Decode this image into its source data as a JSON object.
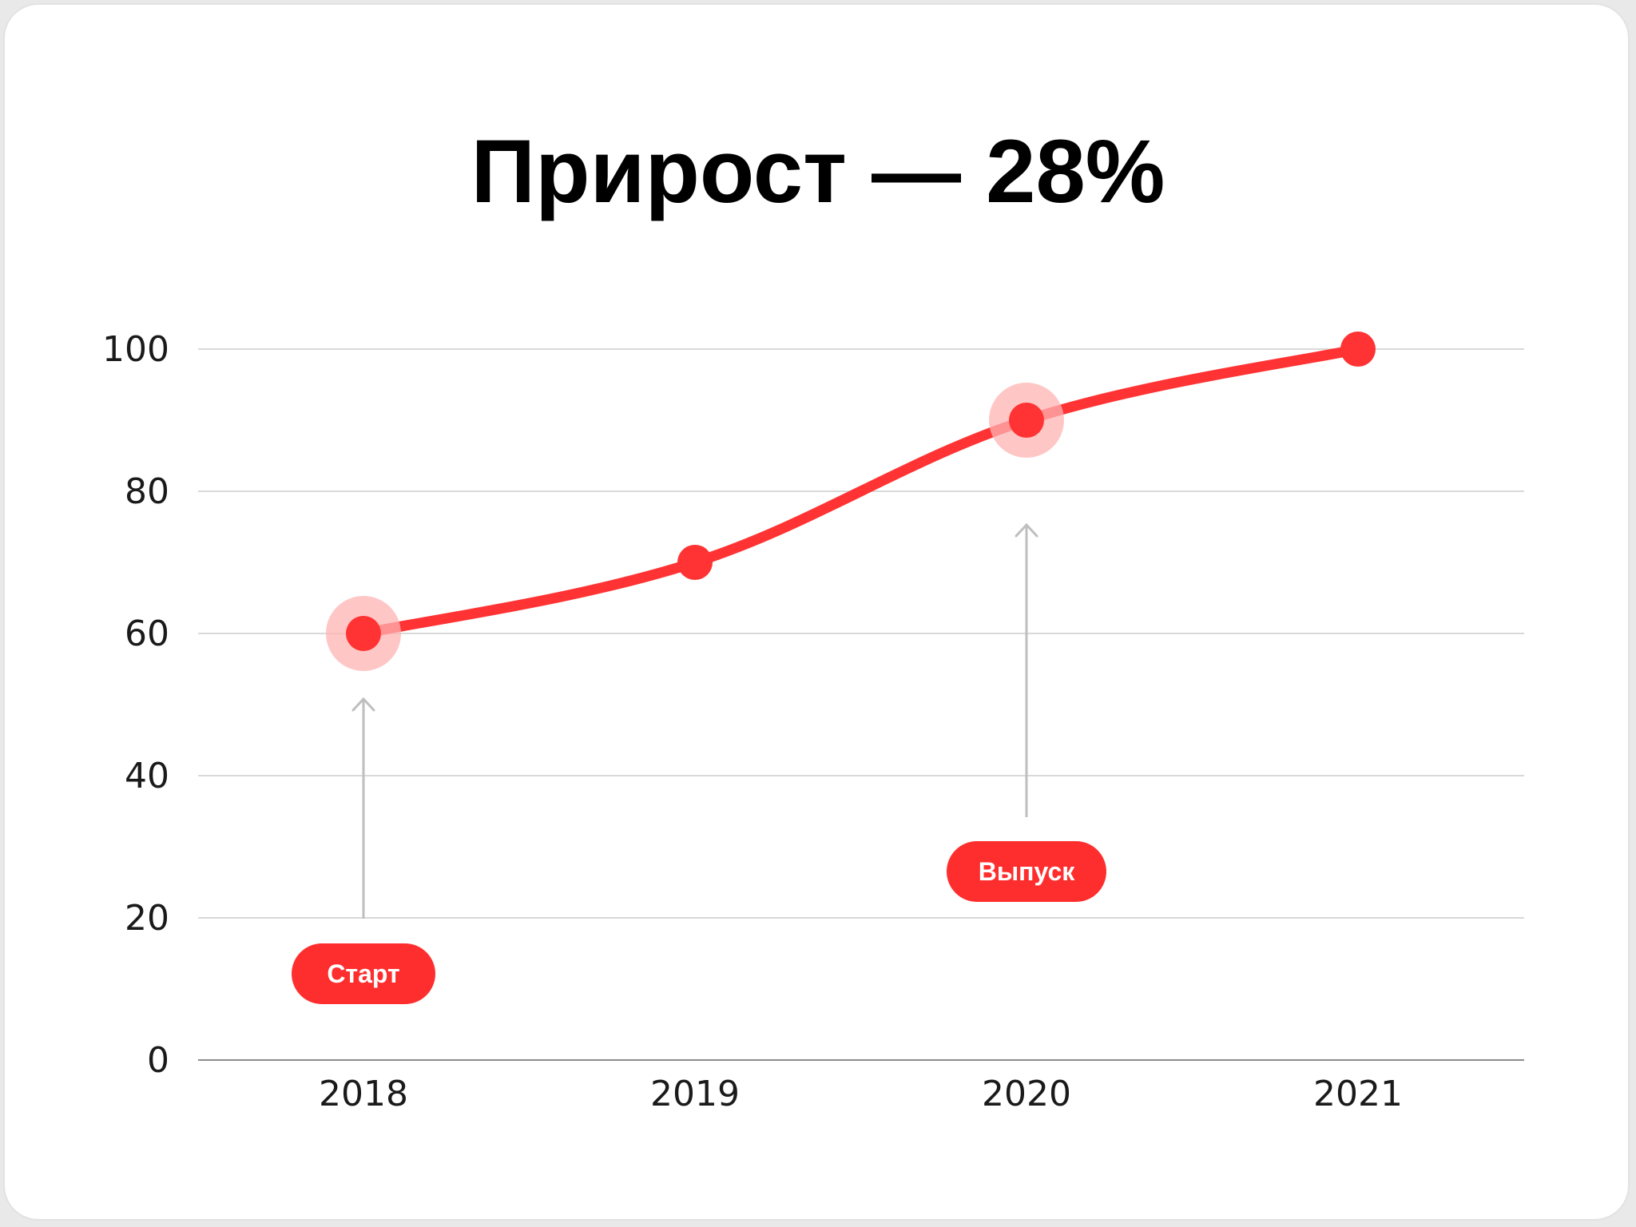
{
  "chart_data": {
    "type": "line",
    "title": "Прирост — 28%",
    "categories": [
      "2018",
      "2019",
      "2020",
      "2021"
    ],
    "series": [
      {
        "values": [
          60,
          70,
          90,
          100
        ]
      }
    ],
    "y_ticks": [
      "0",
      "20",
      "40",
      "60",
      "80",
      "100"
    ],
    "ylim": [
      0,
      100
    ],
    "grid": true,
    "annotations": [
      {
        "text": "Старт",
        "category": "2018"
      },
      {
        "text": "Выпуск",
        "category": "2020"
      }
    ],
    "colors": {
      "line": "#ff3333",
      "highlight": "#ffb3b3",
      "pill": "#ff2e2e",
      "grid": "#d9d9d9",
      "arrow": "#bfbfbf"
    }
  }
}
